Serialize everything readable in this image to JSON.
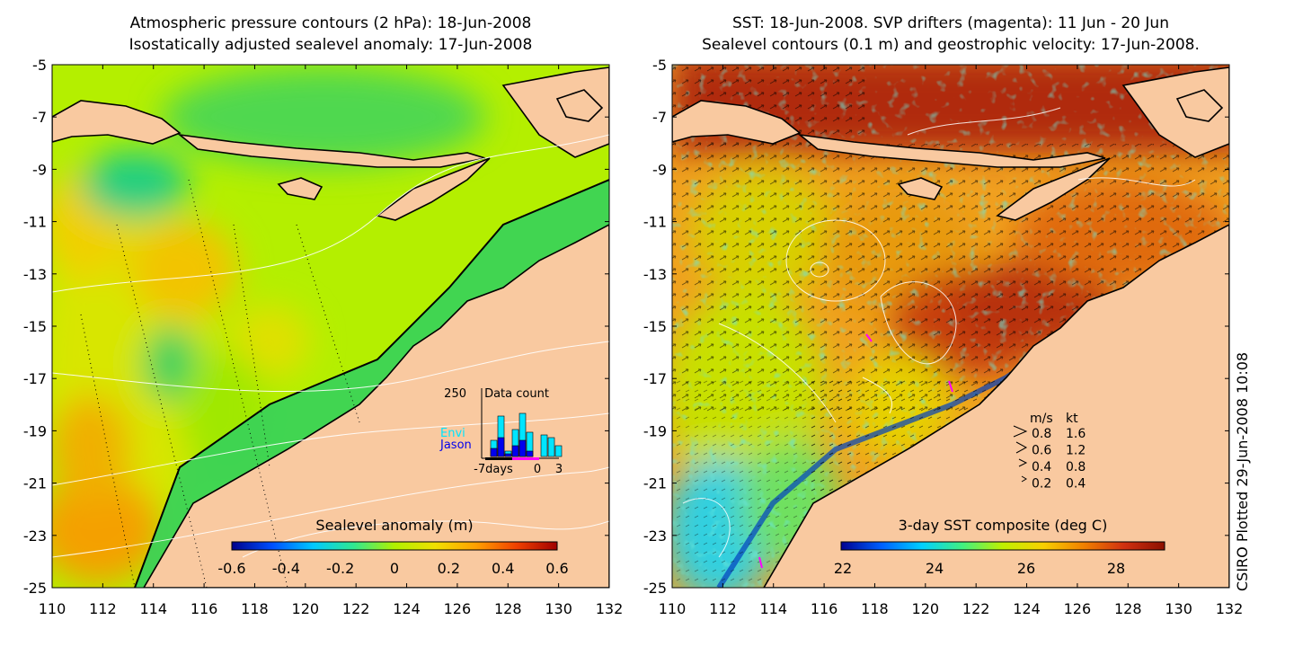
{
  "left_panel": {
    "title_line1": "Atmospheric pressure contours (2 hPa): 18-Jun-2008",
    "title_line2": "Isostatically adjusted sealevel anomaly: 17-Jun-2008",
    "colorbar_label": "Sealevel anomaly (m)",
    "colorbar_ticks": [
      "-0.6",
      "-0.4",
      "-0.2",
      "0",
      "0.2",
      "0.4",
      "0.6"
    ],
    "inset": {
      "ymax_label": "250",
      "title": "Data count",
      "legend_envi": "Envi",
      "legend_jason": "Jason",
      "x_ticks": [
        "-7days",
        "0",
        "3"
      ],
      "envi_color": "#00e5ff",
      "jason_color": "#0000ee",
      "envi_counts": [
        0,
        60,
        150,
        20,
        100,
        160,
        90,
        0,
        80,
        70,
        40
      ],
      "jason_counts": [
        0,
        30,
        70,
        10,
        40,
        60,
        20,
        0,
        0,
        0,
        0
      ]
    }
  },
  "right_panel": {
    "title_line1": "SST: 18-Jun-2008. SVP drifters (magenta): 11 Jun - 20 Jun",
    "title_line2": "Sealevel contours (0.1 m) and geostrophic velocity: 17-Jun-2008.",
    "colorbar_label": "3-day SST composite (deg C)",
    "colorbar_ticks": [
      "22",
      "24",
      "26",
      "28"
    ],
    "velocity_legend": {
      "header_ms": "m/s",
      "header_kt": "kt",
      "rows": [
        {
          "ms": "0.8",
          "kt": "1.6"
        },
        {
          "ms": "0.6",
          "kt": "1.2"
        },
        {
          "ms": "0.4",
          "kt": "0.8"
        },
        {
          "ms": "0.2",
          "kt": "0.4"
        }
      ]
    }
  },
  "axes": {
    "lat_labels": [
      "-5",
      "-7",
      "-9",
      "-11",
      "-13",
      "-15",
      "-17",
      "-19",
      "-21",
      "-23",
      "-25"
    ],
    "lon_labels": [
      "110",
      "112",
      "114",
      "116",
      "118",
      "120",
      "122",
      "124",
      "126",
      "128",
      "130",
      "132"
    ]
  },
  "credit": "CSIRO Plotted 29-Jun-2008 10:08",
  "colors": {
    "land": "#f9c9a0",
    "sla_colormap": [
      "#00008b",
      "#0050ff",
      "#00c8ff",
      "#30e890",
      "#b0f000",
      "#f0e000",
      "#ffa000",
      "#f04000",
      "#a00000"
    ],
    "sst_colormap": [
      "#000090",
      "#0060ff",
      "#00d0ff",
      "#40f080",
      "#c0f000",
      "#f8d000",
      "#f08000",
      "#d03010",
      "#8c1000"
    ]
  }
}
